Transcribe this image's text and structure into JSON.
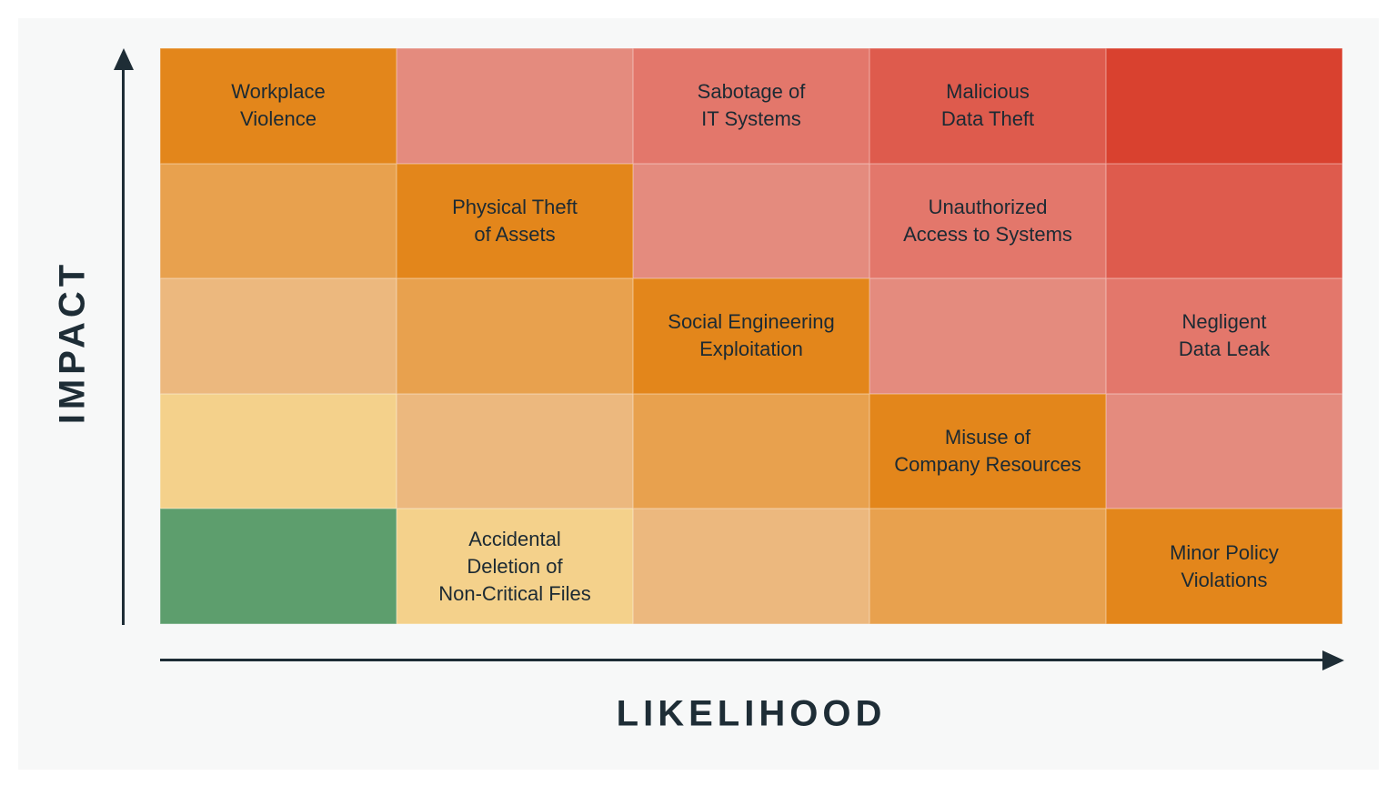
{
  "chart_data": {
    "type": "heatmap",
    "title": "",
    "xlabel": "LIKELIHOOD",
    "ylabel": "IMPACT",
    "rows": 5,
    "cols": 5,
    "grid": false,
    "cells": [
      [
        {
          "label": "Workplace\nViolence",
          "color": "#e3861b"
        },
        {
          "label": "",
          "color": "#e48b7e"
        },
        {
          "label": "Sabotage of\nIT Systems",
          "color": "#e3776b"
        },
        {
          "label": "Malicious\nData Theft",
          "color": "#de5b4d"
        },
        {
          "label": "",
          "color": "#d9412f"
        }
      ],
      [
        {
          "label": "",
          "color": "#e8a14e"
        },
        {
          "label": "Physical Theft\nof Assets",
          "color": "#e3861b"
        },
        {
          "label": "",
          "color": "#e48b7e"
        },
        {
          "label": "Unauthorized\nAccess to Systems",
          "color": "#e3776b"
        },
        {
          "label": "",
          "color": "#de5b4d"
        }
      ],
      [
        {
          "label": "",
          "color": "#ecb87e"
        },
        {
          "label": "",
          "color": "#e8a14e"
        },
        {
          "label": "Social Engineering\nExploitation",
          "color": "#e3861b"
        },
        {
          "label": "",
          "color": "#e48b7e"
        },
        {
          "label": "Negligent\nData Leak",
          "color": "#e3776b"
        }
      ],
      [
        {
          "label": "",
          "color": "#f4d18b"
        },
        {
          "label": "",
          "color": "#ecb87e"
        },
        {
          "label": "",
          "color": "#e8a14e"
        },
        {
          "label": "Misuse of\nCompany Resources",
          "color": "#e3861b"
        },
        {
          "label": "",
          "color": "#e48b7e"
        }
      ],
      [
        {
          "label": "",
          "color": "#5d9e6d"
        },
        {
          "label": "Accidental\nDeletion of\nNon-Critical Files",
          "color": "#f4d18b"
        },
        {
          "label": "",
          "color": "#ecb87e"
        },
        {
          "label": "",
          "color": "#e8a14e"
        },
        {
          "label": "Minor Policy\nViolations",
          "color": "#e3861b"
        }
      ]
    ],
    "axis_color": "#1e2d36",
    "text_color": "#1c2a33",
    "background_color": "#f7f8f8"
  }
}
